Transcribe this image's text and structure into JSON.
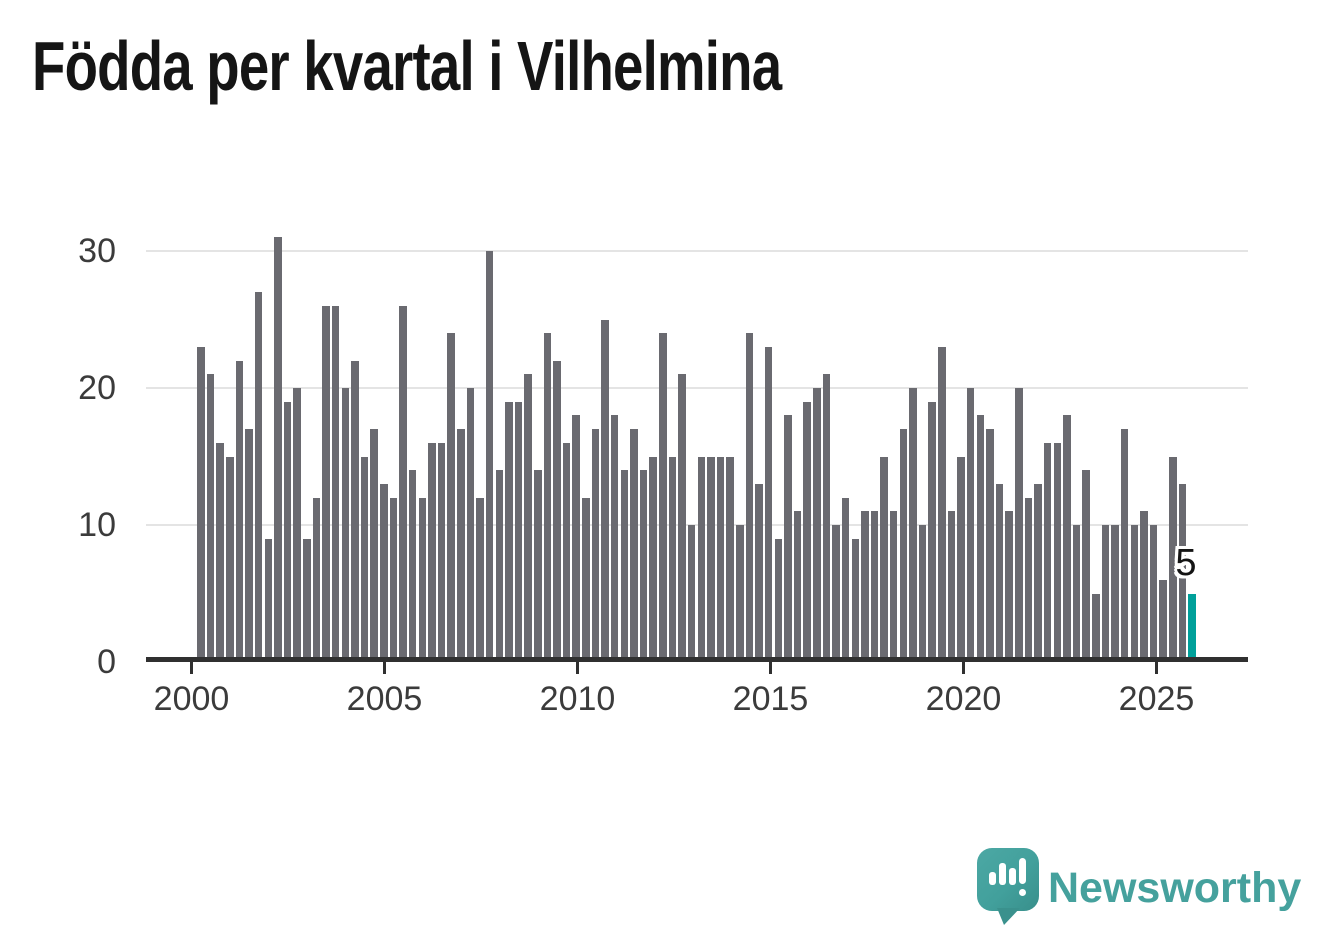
{
  "title": "Födda per kvartal i Vilhelmina",
  "chart_data": {
    "type": "bar",
    "title": "Födda per kvartal i Vilhelmina",
    "subtitle": "",
    "xlabel": "",
    "ylabel": "",
    "start_quarter": "2000-Q1",
    "end_quarter": "2025-Q4",
    "x_tick_labels": [
      "2000",
      "2005",
      "2010",
      "2015",
      "2020",
      "2025"
    ],
    "y_ticks": [
      0,
      10,
      20,
      30
    ],
    "ylim": [
      0,
      32
    ],
    "grid": "horizontal",
    "legend": "none",
    "bar_color": "#6a6a70",
    "series": [
      {
        "name": "Födda per kvartal",
        "values": [
          23,
          21,
          16,
          15,
          22,
          17,
          27,
          9,
          31,
          19,
          20,
          9,
          12,
          26,
          26,
          20,
          22,
          15,
          17,
          13,
          12,
          26,
          14,
          12,
          16,
          16,
          24,
          17,
          20,
          12,
          30,
          14,
          19,
          19,
          21,
          14,
          24,
          22,
          16,
          18,
          12,
          17,
          25,
          18,
          14,
          17,
          14,
          15,
          24,
          15,
          21,
          10,
          15,
          15,
          15,
          15,
          10,
          24,
          13,
          23,
          9,
          18,
          11,
          19,
          20,
          21,
          10,
          12,
          9,
          11,
          11,
          15,
          11,
          17,
          20,
          10,
          19,
          23,
          11,
          15,
          20,
          18,
          17,
          13,
          11,
          20,
          12,
          13,
          16,
          16,
          18,
          10,
          14,
          5,
          10,
          10,
          17,
          10,
          11,
          10,
          6,
          15,
          13,
          5
        ]
      }
    ],
    "highlight": {
      "index": 103,
      "quarter": "2025-Q4",
      "value": 5,
      "label": "5",
      "color": "#00a09a"
    }
  },
  "branding": {
    "name": "Newsworthy",
    "color": "#45a19d",
    "icon": "speech-bubble-bar-chart-icon"
  }
}
